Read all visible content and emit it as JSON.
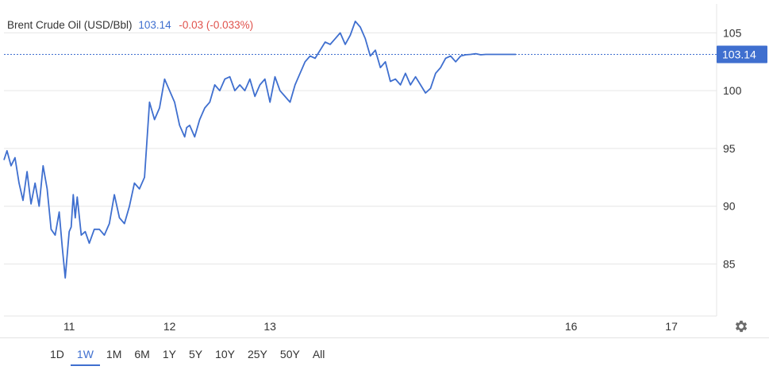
{
  "header": {
    "title": "Brent Crude Oil (USD/Bbl)",
    "price": "103.14",
    "change": "-0.03 (-0.033%)"
  },
  "periods": [
    "1D",
    "1W",
    "1M",
    "6M",
    "1Y",
    "5Y",
    "10Y",
    "25Y",
    "50Y",
    "All"
  ],
  "active_period": "1W",
  "icons": {
    "settings": "gear-icon"
  },
  "colors": {
    "line": "#3f6fcf",
    "negative": "#e0524c",
    "price_label_bg": "#3f6fcf"
  },
  "chart_data": {
    "type": "line",
    "title": "Brent Crude Oil (USD/Bbl)",
    "xlabel": "",
    "ylabel": "",
    "ylim": [
      80.5,
      107.5
    ],
    "y_ticks": [
      85,
      90,
      95,
      100,
      105
    ],
    "x_ticks": [
      {
        "label": "11",
        "x": 11.0
      },
      {
        "label": "12",
        "x": 12.0
      },
      {
        "label": "13",
        "x": 13.0
      },
      {
        "label": "16",
        "x": 16.0
      },
      {
        "label": "17",
        "x": 17.0
      }
    ],
    "xlim": [
      10.35,
      17.45
    ],
    "last_price": 103.14,
    "last_price_label": "103.14",
    "grid": "horizontal",
    "series": [
      {
        "x": [
          10.35,
          10.38,
          10.42,
          10.46,
          10.5,
          10.54,
          10.58,
          10.62,
          10.66,
          10.7,
          10.74,
          10.78,
          10.82,
          10.86,
          10.9,
          10.93,
          10.96,
          11.0,
          11.02,
          11.04,
          11.06,
          11.08,
          11.12,
          11.16,
          11.2,
          11.25,
          11.3,
          11.35,
          11.4,
          11.45,
          11.5,
          11.55,
          11.6,
          11.65,
          11.7,
          11.75,
          11.8,
          11.85,
          11.9,
          11.95,
          12.0,
          12.05,
          12.1,
          12.15,
          12.17,
          12.2,
          12.25,
          12.3,
          12.35,
          12.4,
          12.45,
          12.5,
          12.55,
          12.6,
          12.65,
          12.7,
          12.75,
          12.8,
          12.85,
          12.9,
          12.95,
          13.0,
          13.05,
          13.1,
          13.15,
          13.2,
          13.25,
          13.3,
          13.35,
          13.4,
          13.45,
          13.5,
          13.55,
          13.6,
          13.65,
          13.7,
          13.75,
          13.8,
          13.85,
          13.9,
          13.95,
          14.0,
          14.05,
          14.1,
          14.15,
          14.2,
          14.25,
          14.3,
          14.35,
          14.4,
          14.45,
          14.5,
          14.55,
          14.6,
          14.65,
          14.7,
          14.75,
          14.8,
          14.85,
          14.9,
          14.95,
          15.0,
          15.05,
          15.1,
          15.15,
          15.2,
          15.25,
          15.3,
          15.35,
          15.4,
          15.45
        ],
        "y": [
          94.0,
          94.8,
          93.5,
          94.2,
          92.0,
          90.5,
          93.0,
          90.2,
          92.0,
          90.0,
          93.5,
          91.5,
          88.0,
          87.5,
          89.5,
          86.5,
          83.8,
          87.8,
          88.2,
          91.0,
          89.0,
          90.8,
          87.5,
          87.8,
          86.8,
          88.0,
          88.0,
          87.5,
          88.5,
          91.0,
          89.0,
          88.5,
          90.0,
          92.0,
          91.5,
          92.5,
          99.0,
          97.5,
          98.5,
          101.0,
          100.0,
          99.0,
          97.0,
          96.0,
          96.8,
          97.0,
          96.0,
          97.5,
          98.5,
          99.0,
          100.5,
          100.0,
          101.0,
          101.2,
          100.0,
          100.5,
          100.0,
          101.0,
          99.5,
          100.5,
          101.0,
          99.0,
          101.2,
          100.0,
          99.5,
          99.0,
          100.5,
          101.5,
          102.5,
          103.0,
          102.8,
          103.5,
          104.2,
          104.0,
          104.5,
          105.0,
          104.0,
          104.8,
          106.0,
          105.5,
          104.5,
          103.0,
          103.5,
          102.0,
          102.5,
          100.8,
          101.0,
          100.5,
          101.5,
          100.5,
          101.2,
          100.5,
          99.8,
          100.2,
          101.5,
          102.0,
          102.8,
          103.0,
          102.5,
          103.0,
          103.1,
          103.14,
          103.2,
          103.1,
          103.14,
          103.14,
          103.14,
          103.14,
          103.14,
          103.14,
          103.14
        ]
      }
    ]
  }
}
